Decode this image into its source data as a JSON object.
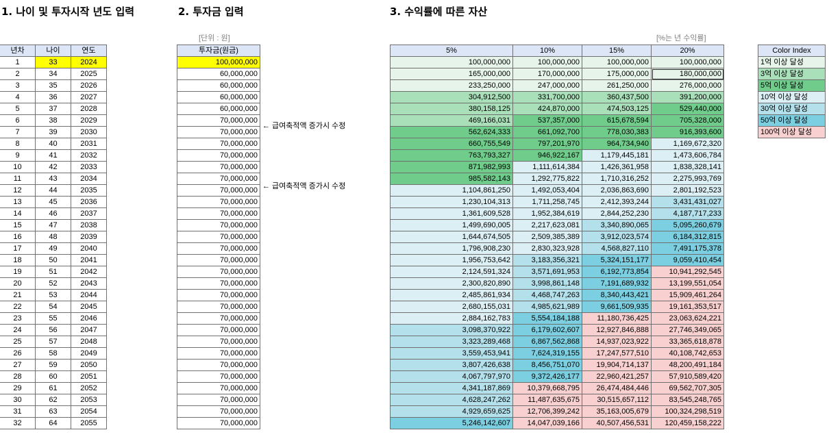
{
  "titles": {
    "t1": "1. 나이 및 투자시작 년도 입력",
    "t2": "2. 투자금 입력",
    "t3": "3. 수익률에 따른 자산"
  },
  "units": {
    "investment": "[단위 : 원]",
    "returns": "[%는 년 수익률]"
  },
  "colors": {
    "header": "#dce6f7",
    "input_highlight": "#ffff00",
    "c1": "#e6f4ea",
    "c3": "#a9e0b9",
    "c5": "#6fcc8b",
    "c10": "#dceff4",
    "c30": "#b3e0ea",
    "c50": "#7ccfe0",
    "c100": "#f8d0d0"
  },
  "table1": {
    "headers": [
      "년차",
      "나이",
      "연도"
    ]
  },
  "table2": {
    "header": "투자금(원금)"
  },
  "table3": {
    "headers": [
      "5%",
      "10%",
      "15%",
      "20%"
    ]
  },
  "notes": {
    "n1": "← 급여축적액 증가시 수정",
    "n2": "← 급여축적액 증가시 수정"
  },
  "color_index": {
    "header": "Color Index",
    "items": [
      "1억 이상 달성",
      "3억 이상 달성",
      "5억 이상 달성",
      "10억 이상 달성",
      "30억 이상 달성",
      "50억 이상 달성",
      "100억 이상 달성"
    ]
  },
  "rows": [
    {
      "year": "1",
      "age": "33",
      "cal": "2024",
      "inv": "100,000,000",
      "r5": "100,000,000",
      "r10": "100,000,000",
      "r15": "100,000,000",
      "r20": "100,000,000"
    },
    {
      "year": "2",
      "age": "34",
      "cal": "2025",
      "inv": "60,000,000",
      "r5": "165,000,000",
      "r10": "170,000,000",
      "r15": "175,000,000",
      "r20": "180,000,000"
    },
    {
      "year": "3",
      "age": "35",
      "cal": "2026",
      "inv": "60,000,000",
      "r5": "233,250,000",
      "r10": "247,000,000",
      "r15": "261,250,000",
      "r20": "276,000,000"
    },
    {
      "year": "4",
      "age": "36",
      "cal": "2027",
      "inv": "60,000,000",
      "r5": "304,912,500",
      "r10": "331,700,000",
      "r15": "360,437,500",
      "r20": "391,200,000"
    },
    {
      "year": "5",
      "age": "37",
      "cal": "2028",
      "inv": "60,000,000",
      "r5": "380,158,125",
      "r10": "424,870,000",
      "r15": "474,503,125",
      "r20": "529,440,000"
    },
    {
      "year": "6",
      "age": "38",
      "cal": "2029",
      "inv": "70,000,000",
      "r5": "469,166,031",
      "r10": "537,357,000",
      "r15": "615,678,594",
      "r20": "705,328,000"
    },
    {
      "year": "7",
      "age": "39",
      "cal": "2030",
      "inv": "70,000,000",
      "r5": "562,624,333",
      "r10": "661,092,700",
      "r15": "778,030,383",
      "r20": "916,393,600"
    },
    {
      "year": "8",
      "age": "40",
      "cal": "2031",
      "inv": "70,000,000",
      "r5": "660,755,549",
      "r10": "797,201,970",
      "r15": "964,734,940",
      "r20": "1,169,672,320"
    },
    {
      "year": "9",
      "age": "41",
      "cal": "2032",
      "inv": "70,000,000",
      "r5": "763,793,327",
      "r10": "946,922,167",
      "r15": "1,179,445,181",
      "r20": "1,473,606,784"
    },
    {
      "year": "10",
      "age": "42",
      "cal": "2033",
      "inv": "70,000,000",
      "r5": "871,982,993",
      "r10": "1,111,614,384",
      "r15": "1,426,361,958",
      "r20": "1,838,328,141"
    },
    {
      "year": "11",
      "age": "43",
      "cal": "2034",
      "inv": "70,000,000",
      "r5": "985,582,143",
      "r10": "1,292,775,822",
      "r15": "1,710,316,252",
      "r20": "2,275,993,769"
    },
    {
      "year": "12",
      "age": "44",
      "cal": "2035",
      "inv": "70,000,000",
      "r5": "1,104,861,250",
      "r10": "1,492,053,404",
      "r15": "2,036,863,690",
      "r20": "2,801,192,523"
    },
    {
      "year": "13",
      "age": "45",
      "cal": "2036",
      "inv": "70,000,000",
      "r5": "1,230,104,313",
      "r10": "1,711,258,745",
      "r15": "2,412,393,244",
      "r20": "3,431,431,027"
    },
    {
      "year": "14",
      "age": "46",
      "cal": "2037",
      "inv": "70,000,000",
      "r5": "1,361,609,528",
      "r10": "1,952,384,619",
      "r15": "2,844,252,230",
      "r20": "4,187,717,233"
    },
    {
      "year": "15",
      "age": "47",
      "cal": "2038",
      "inv": "70,000,000",
      "r5": "1,499,690,005",
      "r10": "2,217,623,081",
      "r15": "3,340,890,065",
      "r20": "5,095,260,679"
    },
    {
      "year": "16",
      "age": "48",
      "cal": "2039",
      "inv": "70,000,000",
      "r5": "1,644,674,505",
      "r10": "2,509,385,389",
      "r15": "3,912,023,574",
      "r20": "6,184,312,815"
    },
    {
      "year": "17",
      "age": "49",
      "cal": "2040",
      "inv": "70,000,000",
      "r5": "1,796,908,230",
      "r10": "2,830,323,928",
      "r15": "4,568,827,110",
      "r20": "7,491,175,378"
    },
    {
      "year": "18",
      "age": "50",
      "cal": "2041",
      "inv": "70,000,000",
      "r5": "1,956,753,642",
      "r10": "3,183,356,321",
      "r15": "5,324,151,177",
      "r20": "9,059,410,454"
    },
    {
      "year": "19",
      "age": "51",
      "cal": "2042",
      "inv": "70,000,000",
      "r5": "2,124,591,324",
      "r10": "3,571,691,953",
      "r15": "6,192,773,854",
      "r20": "10,941,292,545"
    },
    {
      "year": "20",
      "age": "52",
      "cal": "2043",
      "inv": "70,000,000",
      "r5": "2,300,820,890",
      "r10": "3,998,861,148",
      "r15": "7,191,689,932",
      "r20": "13,199,551,054"
    },
    {
      "year": "21",
      "age": "53",
      "cal": "2044",
      "inv": "70,000,000",
      "r5": "2,485,861,934",
      "r10": "4,468,747,263",
      "r15": "8,340,443,421",
      "r20": "15,909,461,264"
    },
    {
      "year": "22",
      "age": "54",
      "cal": "2045",
      "inv": "70,000,000",
      "r5": "2,680,155,031",
      "r10": "4,985,621,989",
      "r15": "9,661,509,935",
      "r20": "19,161,353,517"
    },
    {
      "year": "23",
      "age": "55",
      "cal": "2046",
      "inv": "70,000,000",
      "r5": "2,884,162,783",
      "r10": "5,554,184,188",
      "r15": "11,180,736,425",
      "r20": "23,063,624,221"
    },
    {
      "year": "24",
      "age": "56",
      "cal": "2047",
      "inv": "70,000,000",
      "r5": "3,098,370,922",
      "r10": "6,179,602,607",
      "r15": "12,927,846,888",
      "r20": "27,746,349,065"
    },
    {
      "year": "25",
      "age": "57",
      "cal": "2048",
      "inv": "70,000,000",
      "r5": "3,323,289,468",
      "r10": "6,867,562,868",
      "r15": "14,937,023,922",
      "r20": "33,365,618,878"
    },
    {
      "year": "26",
      "age": "58",
      "cal": "2049",
      "inv": "70,000,000",
      "r5": "3,559,453,941",
      "r10": "7,624,319,155",
      "r15": "17,247,577,510",
      "r20": "40,108,742,653"
    },
    {
      "year": "27",
      "age": "59",
      "cal": "2050",
      "inv": "70,000,000",
      "r5": "3,807,426,638",
      "r10": "8,456,751,070",
      "r15": "19,904,714,137",
      "r20": "48,200,491,184"
    },
    {
      "year": "28",
      "age": "60",
      "cal": "2051",
      "inv": "70,000,000",
      "r5": "4,067,797,970",
      "r10": "9,372,426,177",
      "r15": "22,960,421,257",
      "r20": "57,910,589,420"
    },
    {
      "year": "29",
      "age": "61",
      "cal": "2052",
      "inv": "70,000,000",
      "r5": "4,341,187,869",
      "r10": "10,379,668,795",
      "r15": "26,474,484,446",
      "r20": "69,562,707,305"
    },
    {
      "year": "30",
      "age": "62",
      "cal": "2053",
      "inv": "70,000,000",
      "r5": "4,628,247,262",
      "r10": "11,487,635,675",
      "r15": "30,515,657,112",
      "r20": "83,545,248,765"
    },
    {
      "year": "31",
      "age": "63",
      "cal": "2054",
      "inv": "70,000,000",
      "r5": "4,929,659,625",
      "r10": "12,706,399,242",
      "r15": "35,163,005,679",
      "r20": "100,324,298,519"
    },
    {
      "year": "32",
      "age": "64",
      "cal": "2055",
      "inv": "70,000,000",
      "r5": "5,246,142,607",
      "r10": "14,047,039,166",
      "r15": "40,507,456,531",
      "r20": "120,459,158,222"
    }
  ]
}
